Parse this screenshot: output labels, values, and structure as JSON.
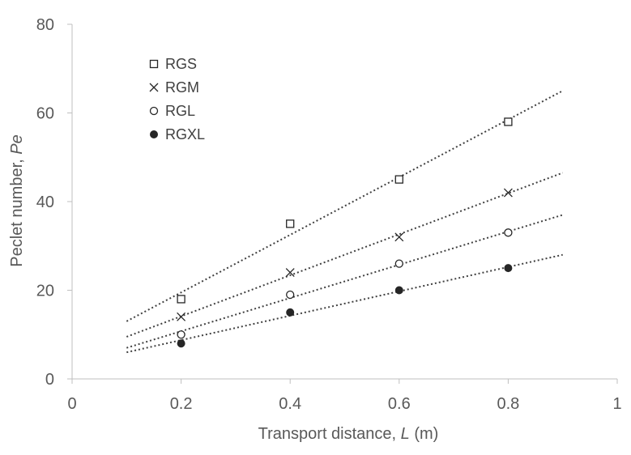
{
  "chart_data": {
    "type": "scatter",
    "title": "",
    "xlabel_main": "Transport distance, ",
    "xlabel_var": "L",
    "xlabel_unit": " (m)",
    "ylabel_main": "Peclet number, ",
    "ylabel_var": "Pe",
    "xlim": [
      0,
      1
    ],
    "ylim": [
      0,
      80
    ],
    "x_ticks": [
      0,
      0.2,
      0.4,
      0.6,
      0.8,
      1
    ],
    "x_tick_labels": [
      "0",
      "0.2",
      "0.4",
      "0.6",
      "0.8",
      "1"
    ],
    "y_ticks": [
      0,
      20,
      40,
      60,
      80
    ],
    "y_tick_labels": [
      "0",
      "20",
      "40",
      "60",
      "80"
    ],
    "grid": false,
    "legend_position": "top-left",
    "x": [
      0.2,
      0.4,
      0.6,
      0.8
    ],
    "series": [
      {
        "name": "RGS",
        "marker": "open-square",
        "values": [
          18,
          35,
          45,
          58
        ],
        "trendline": {
          "x": [
            0.1,
            0.9
          ],
          "y": [
            13,
            65
          ]
        }
      },
      {
        "name": "RGM",
        "marker": "cross",
        "values": [
          14,
          24,
          32,
          42
        ],
        "trendline": {
          "x": [
            0.1,
            0.9
          ],
          "y": [
            9.5,
            46.5
          ]
        }
      },
      {
        "name": "RGL",
        "marker": "open-circle",
        "values": [
          10,
          19,
          26,
          33
        ],
        "trendline": {
          "x": [
            0.1,
            0.9
          ],
          "y": [
            7,
            37
          ]
        }
      },
      {
        "name": "RGXL",
        "marker": "filled-circle",
        "values": [
          8,
          15,
          20,
          25
        ],
        "trendline": {
          "x": [
            0.1,
            0.9
          ],
          "y": [
            6,
            28
          ]
        }
      }
    ]
  },
  "colors": {
    "axis": "#bfbfbf",
    "tick_text": "#595959",
    "marker": "#262626",
    "trendline": "#404040"
  }
}
